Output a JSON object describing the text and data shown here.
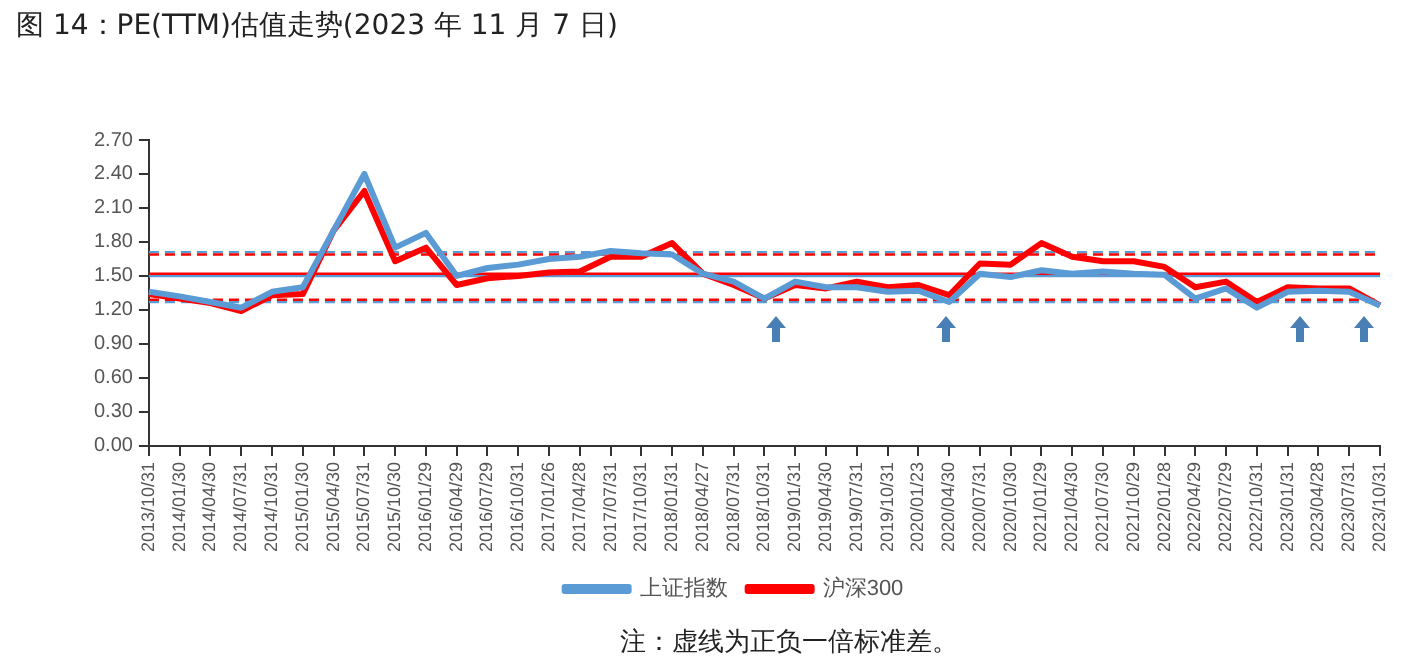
{
  "chart_data": {
    "type": "line",
    "title": "图 14：PE(TTM)估值走势(2023 年 11 月 7 日)",
    "categories": [
      "2013/10/31",
      "2014/01/30",
      "2014/04/30",
      "2014/07/31",
      "2014/10/31",
      "2015/01/30",
      "2015/04/30",
      "2015/07/31",
      "2015/10/30",
      "2016/01/29",
      "2016/04/29",
      "2016/07/29",
      "2016/10/31",
      "2017/01/26",
      "2017/04/28",
      "2017/07/31",
      "2017/10/31",
      "2018/01/31",
      "2018/04/27",
      "2018/07/31",
      "2018/10/31",
      "2019/01/31",
      "2019/04/30",
      "2019/07/31",
      "2019/10/31",
      "2020/01/23",
      "2020/04/30",
      "2020/07/31",
      "2020/10/30",
      "2021/01/29",
      "2021/04/30",
      "2021/07/30",
      "2021/10/29",
      "2022/01/28",
      "2022/04/29",
      "2022/07/29",
      "2022/10/31",
      "2023/01/31",
      "2023/04/28",
      "2023/07/31",
      "2023/10/31"
    ],
    "series": [
      {
        "name": "上证指数",
        "color": "#5b9bd5",
        "values": [
          1.36,
          1.32,
          1.27,
          1.22,
          1.36,
          1.4,
          1.9,
          2.4,
          1.75,
          1.88,
          1.5,
          1.57,
          1.6,
          1.65,
          1.67,
          1.72,
          1.7,
          1.69,
          1.52,
          1.45,
          1.3,
          1.45,
          1.4,
          1.4,
          1.36,
          1.37,
          1.27,
          1.52,
          1.49,
          1.55,
          1.52,
          1.54,
          1.52,
          1.51,
          1.3,
          1.39,
          1.22,
          1.36,
          1.37,
          1.36,
          1.24
        ]
      },
      {
        "name": "沪深300",
        "color": "#ff0000",
        "values": [
          1.34,
          1.3,
          1.26,
          1.19,
          1.33,
          1.34,
          1.9,
          2.25,
          1.63,
          1.75,
          1.42,
          1.48,
          1.5,
          1.53,
          1.54,
          1.67,
          1.67,
          1.79,
          1.52,
          1.42,
          1.3,
          1.42,
          1.39,
          1.45,
          1.4,
          1.42,
          1.33,
          1.61,
          1.6,
          1.79,
          1.67,
          1.63,
          1.63,
          1.58,
          1.4,
          1.45,
          1.27,
          1.4,
          1.39,
          1.39,
          1.24
        ]
      }
    ],
    "ylim": [
      0,
      2.7
    ],
    "yticks": [
      {
        "value": 0,
        "label": "0.00"
      },
      {
        "value": 0.3,
        "label": "0.30"
      },
      {
        "value": 0.6,
        "label": "0.60"
      },
      {
        "value": 0.9,
        "label": "0.90"
      },
      {
        "value": 1.2,
        "label": "1.20"
      },
      {
        "value": 1.5,
        "label": "1.50"
      },
      {
        "value": 1.8,
        "label": "1.80"
      },
      {
        "value": 2.1,
        "label": "2.10"
      },
      {
        "value": 2.4,
        "label": "2.40"
      },
      {
        "value": 2.7,
        "label": "2.70"
      }
    ],
    "ref_lines": [
      {
        "axis": "y",
        "value": 1.71,
        "color": "#5b9bd5",
        "line_style": "dashed"
      },
      {
        "axis": "y",
        "value": 1.69,
        "color": "#ff0000",
        "line_style": "dashed"
      },
      {
        "axis": "y",
        "value": 1.5,
        "color": "#5b9bd5",
        "line_style": "solid"
      },
      {
        "axis": "y",
        "value": 1.52,
        "color": "#ff0000",
        "line_style": "solid"
      },
      {
        "axis": "y",
        "value": 1.27,
        "color": "#5b9bd5",
        "line_style": "dashed"
      },
      {
        "axis": "y",
        "value": 1.29,
        "color": "#ff0000",
        "line_style": "dashed"
      }
    ],
    "annotations": [
      "注：虚线为正负一倍标准差。"
    ],
    "legend": "bottom",
    "grid": false,
    "marker": "none",
    "line_style": "solid"
  }
}
